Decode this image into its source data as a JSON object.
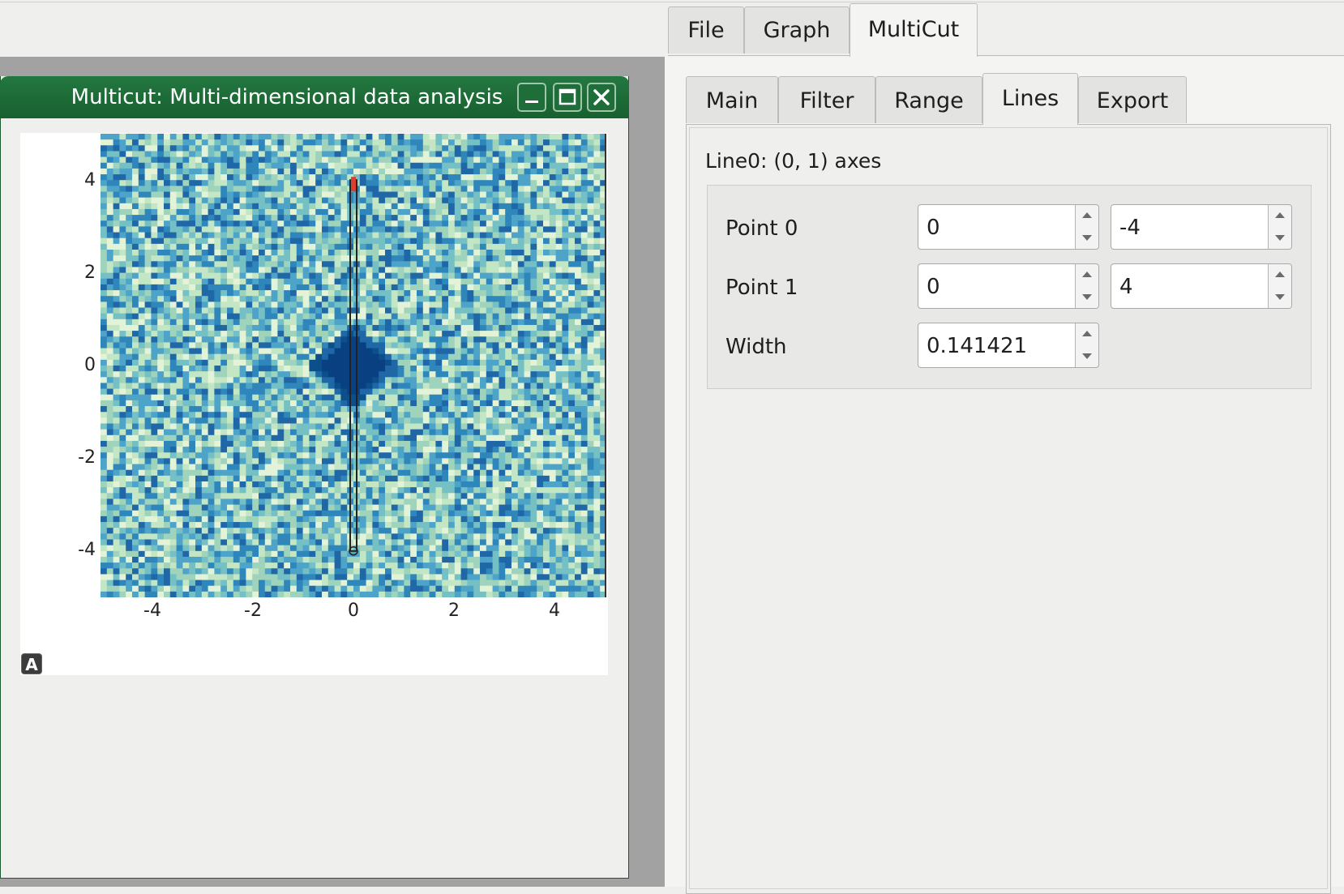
{
  "main_tabs": [
    {
      "label": "File"
    },
    {
      "label": "Graph"
    },
    {
      "label": "MultiCut",
      "active": true
    }
  ],
  "subwindow": {
    "title": "Multicut: Multi-dimensional data analysis",
    "buttons": {
      "minimize_icon": "minimize-icon",
      "maximize_icon": "maximize-icon",
      "close_icon": "close-icon"
    }
  },
  "plot": {
    "y_ticks": [
      "4",
      "2",
      "0",
      "-2",
      "-4"
    ],
    "x_ticks": [
      "-4",
      "-2",
      "0",
      "2",
      "4"
    ],
    "xlim": [
      -5,
      5
    ],
    "ylim": [
      -5,
      5
    ],
    "colormap": "green-blue",
    "line": {
      "start": [
        0,
        -4
      ],
      "end": [
        0,
        4
      ]
    },
    "autoscale_icon_label": "A"
  },
  "sub_tabs": [
    {
      "label": "Main"
    },
    {
      "label": "Filter"
    },
    {
      "label": "Range"
    },
    {
      "label": "Lines",
      "active": true
    },
    {
      "label": "Export"
    }
  ],
  "lines_panel": {
    "group_title": "Line0: (0, 1) axes",
    "point0": {
      "label": "Point 0",
      "x": "0",
      "y": "-4"
    },
    "point1": {
      "label": "Point 1",
      "x": "0",
      "y": "4"
    },
    "width": {
      "label": "Width",
      "value": "0.141421"
    }
  },
  "colors": {
    "titlebar": "#1d6c38",
    "accent_line": "#222222",
    "line_marker": "#d9402f"
  }
}
